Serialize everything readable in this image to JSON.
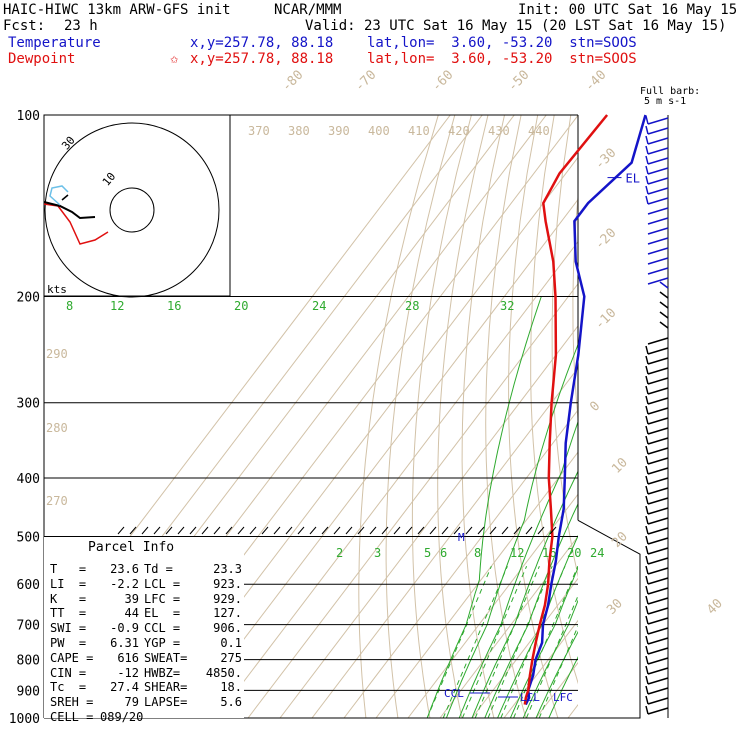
{
  "header": {
    "model": "HAIC-HIWC 13km ARW-GFS init",
    "center": "NCAR/MMM",
    "init": "Init: 00 UTC Sat 16 May 15",
    "fcst_label": "Fcst:",
    "fcst_value": "23 h",
    "valid": "Valid: 23 UTC Sat 16 May 15 (20 LST Sat 16 May 15)"
  },
  "legend": {
    "temperature": {
      "name": "Temperature",
      "info": "x,y=257.78, 88.18    lat,lon=  3.60, -53.20  stn=SOOS",
      "color": "#1414c8"
    },
    "dewpoint": {
      "name": "Dewpoint",
      "marker": "✩",
      "info": "x,y=257.78, 88.18    lat,lon=  3.60, -53.20  stn=SOOS",
      "color": "#e01010"
    }
  },
  "barb_legend": {
    "line1": "Full barb:",
    "line2": "5 m s-1"
  },
  "hodograph": {
    "units": "kts",
    "ring_inner": "10",
    "ring_outer": "30"
  },
  "labels": {
    "el": "EL",
    "m": "M",
    "ccl": "CCL",
    "lcl": "LCL",
    "lfc": "LFC"
  },
  "parcel_info": {
    "title": "Parcel Info",
    "rows": [
      [
        "T   =",
        "23.6",
        "Td =",
        "23.3"
      ],
      [
        "LI  =",
        "-2.2",
        "LCL =",
        "923."
      ],
      [
        "K   =",
        "39",
        "LFC =",
        "929."
      ],
      [
        "TT  =",
        "44",
        "EL  =",
        "127."
      ],
      [
        "SWI =",
        "-0.9",
        "CCL =",
        "906."
      ],
      [
        "PW  =",
        "6.31",
        "YGP =",
        "0.1"
      ],
      [
        "CAPE =",
        "616",
        "SWEAT=",
        "275"
      ],
      [
        "CIN =",
        "-12",
        "HWBZ=",
        "4850."
      ],
      [
        "Tc  =",
        "27.4",
        "SHEAR=",
        "18."
      ],
      [
        "SREH =",
        "79",
        "LAPSE=",
        "5.6"
      ],
      [
        "CELL =",
        "089/20",
        "",
        ""
      ]
    ]
  },
  "chart_data": {
    "type": "line",
    "pressure_levels": [
      100,
      200,
      300,
      400,
      500,
      600,
      700,
      800,
      900,
      1000
    ],
    "pressure_range": [
      100,
      1000
    ],
    "series": [
      {
        "name": "Temperature",
        "color": "#1414c8",
        "points": [
          [
            100,
            -79
          ],
          [
            120,
            -72
          ],
          [
            140,
            -76
          ],
          [
            150,
            -76
          ],
          [
            175,
            -66
          ],
          [
            200,
            -55
          ],
          [
            250,
            -43
          ],
          [
            300,
            -34
          ],
          [
            350,
            -26
          ],
          [
            400,
            -18
          ],
          [
            450,
            -11
          ],
          [
            500,
            -6
          ],
          [
            550,
            -1
          ],
          [
            600,
            3
          ],
          [
            650,
            7
          ],
          [
            700,
            10
          ],
          [
            750,
            14
          ],
          [
            800,
            16
          ],
          [
            850,
            19
          ],
          [
            900,
            21
          ],
          [
            925,
            23
          ],
          [
            950,
            23.6
          ]
        ]
      },
      {
        "name": "Dewpoint",
        "color": "#e01010",
        "points": [
          [
            100,
            -91
          ],
          [
            125,
            -92
          ],
          [
            140,
            -90
          ],
          [
            150,
            -85
          ],
          [
            175,
            -73
          ],
          [
            200,
            -64
          ],
          [
            250,
            -50
          ],
          [
            300,
            -40
          ],
          [
            350,
            -31
          ],
          [
            400,
            -23
          ],
          [
            450,
            -15
          ],
          [
            500,
            -8
          ],
          [
            550,
            -3
          ],
          [
            600,
            2
          ],
          [
            650,
            6
          ],
          [
            700,
            9
          ],
          [
            750,
            12
          ],
          [
            800,
            15
          ],
          [
            850,
            18
          ],
          [
            900,
            21
          ],
          [
            925,
            22
          ],
          [
            950,
            23.3
          ]
        ]
      }
    ],
    "isotherm_labels": [
      "-80",
      "-70",
      "-60",
      "-50",
      "-40",
      "-30",
      "-20",
      "-10",
      "0",
      "10",
      "20",
      "30",
      "40"
    ],
    "theta_labels": [
      "370",
      "380",
      "390",
      "400",
      "410",
      "420",
      "430",
      "440"
    ],
    "theta_left_labels": [
      "290",
      "280",
      "270"
    ],
    "mixing_ratio_upper": [
      "8",
      "12",
      "16",
      "20",
      "24",
      "28",
      "32"
    ],
    "mixing_ratio_lower": [
      "2",
      "3",
      "5",
      "6",
      "8",
      "12",
      "16",
      "20",
      "24"
    ],
    "wind_barbs": {
      "units": "m s-1"
    }
  }
}
